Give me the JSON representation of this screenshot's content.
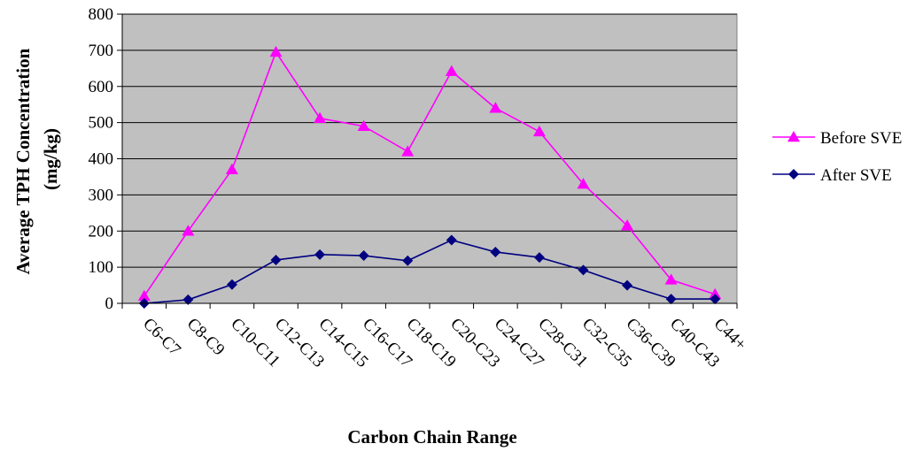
{
  "chart_data": {
    "type": "line",
    "title": "",
    "xlabel": "Carbon Chain Range",
    "ylabel_lines": [
      "Average TPH Concentration",
      "(mg/kg)"
    ],
    "categories": [
      "C6-C7",
      "C8-C9",
      "C10-C11",
      "C12-C13",
      "C14-C15",
      "C16-C17",
      "C18-C19",
      "C20-C23",
      "C24-C27",
      "C28-C31",
      "C32-C35",
      "C36-C39",
      "C40-C43",
      "C44+"
    ],
    "ylim": [
      0,
      800
    ],
    "yticks": [
      0,
      100,
      200,
      300,
      400,
      500,
      600,
      700,
      800
    ],
    "grid": "horizontal",
    "plot_background": "#c0c0c0",
    "legend_position": "right",
    "series": [
      {
        "name": "Before SVE",
        "color": "#ff00ff",
        "marker": "triangle-icon",
        "values": [
          20,
          200,
          370,
          695,
          512,
          490,
          420,
          642,
          540,
          475,
          330,
          215,
          65,
          25
        ]
      },
      {
        "name": "After SVE",
        "color": "#000080",
        "marker": "diamond-icon",
        "values": [
          0,
          10,
          52,
          120,
          135,
          132,
          118,
          175,
          142,
          127,
          92,
          50,
          12,
          12
        ]
      }
    ]
  }
}
